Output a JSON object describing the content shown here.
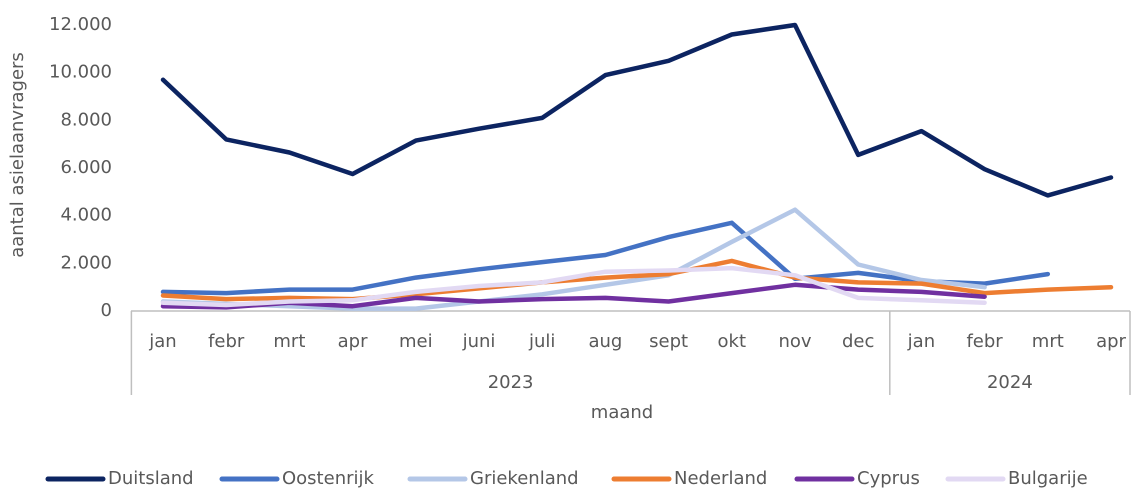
{
  "chart_data": {
    "type": "line",
    "y_label": "aantal asielaanvragers",
    "x_label": "maand",
    "categories": [
      "jan",
      "febr",
      "mrt",
      "apr",
      "mei",
      "juni",
      "juli",
      "aug",
      "sept",
      "okt",
      "nov",
      "dec",
      "jan",
      "febr",
      "mrt",
      "apr"
    ],
    "years": [
      "2023",
      "2024"
    ],
    "ylim": [
      0,
      12000
    ],
    "yticks": [
      0,
      {
        "value": 2000,
        "label": "2.000"
      },
      {
        "value": 4000,
        "label": "4.000"
      },
      {
        "value": 6000,
        "label": "6.000"
      },
      {
        "value": 8000,
        "label": "8.000"
      },
      {
        "value": 10000,
        "label": "10.000"
      },
      {
        "value": 12000,
        "label": "12.000"
      }
    ],
    "grid": false,
    "legend": "bottom",
    "series": [
      {
        "name": "Duitsland",
        "color": "#0c2461",
        "values": [
          9700,
          7200,
          6650,
          5750,
          7150,
          7650,
          8100,
          9900,
          10500,
          11600,
          12000,
          6550,
          7550,
          5950,
          4850,
          5600
        ]
      },
      {
        "name": "Oostenrijk",
        "color": "#4472c4",
        "values": [
          800,
          750,
          900,
          900,
          1400,
          1750,
          2050,
          2350,
          3100,
          3700,
          1350,
          1600,
          1250,
          1150,
          1550,
          null
        ]
      },
      {
        "name": "Griekenland",
        "color": "#b4c7e7",
        "values": [
          400,
          300,
          200,
          100,
          100,
          400,
          700,
          1100,
          1500,
          2900,
          4250,
          1950,
          1300,
          1000,
          null,
          null
        ]
      },
      {
        "name": "Nederland",
        "color": "#ed7d31",
        "values": [
          650,
          500,
          550,
          500,
          700,
          950,
          1200,
          1400,
          1550,
          2100,
          1400,
          1200,
          1150,
          750,
          900,
          1000
        ]
      },
      {
        "name": "Cyprus",
        "color": "#7030a0",
        "values": [
          200,
          150,
          350,
          200,
          550,
          400,
          500,
          550,
          400,
          750,
          1100,
          900,
          800,
          600,
          null,
          null
        ]
      },
      {
        "name": "Bulgarije",
        "color": "#e2d9f3",
        "values": [
          350,
          250,
          400,
          450,
          800,
          1050,
          1200,
          1650,
          1700,
          1800,
          1500,
          550,
          450,
          350,
          null,
          null
        ]
      }
    ]
  }
}
